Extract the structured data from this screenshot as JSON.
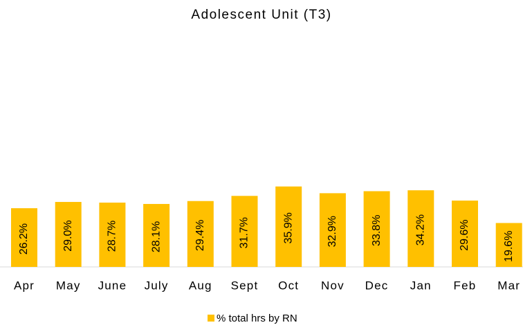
{
  "chart_data": {
    "type": "bar",
    "title": "Adolescent Unit (T3)",
    "categories": [
      "Apr",
      "May",
      "June",
      "July",
      "Aug",
      "Sept",
      "Oct",
      "Nov",
      "Dec",
      "Jan",
      "Feb",
      "Mar"
    ],
    "series": [
      {
        "name": "% total hrs by RN",
        "color": "#ffc000",
        "values": [
          26.2,
          29.0,
          28.7,
          28.1,
          29.4,
          31.7,
          35.9,
          32.9,
          33.8,
          34.2,
          29.6,
          19.6
        ],
        "value_labels": [
          "26.2%",
          "29.0%",
          "28.7%",
          "28.1%",
          "29.4%",
          "31.7%",
          "35.9%",
          "32.9%",
          "33.8%",
          "34.2%",
          "29.6%",
          "19.6%"
        ]
      }
    ],
    "legend": "bottom"
  }
}
